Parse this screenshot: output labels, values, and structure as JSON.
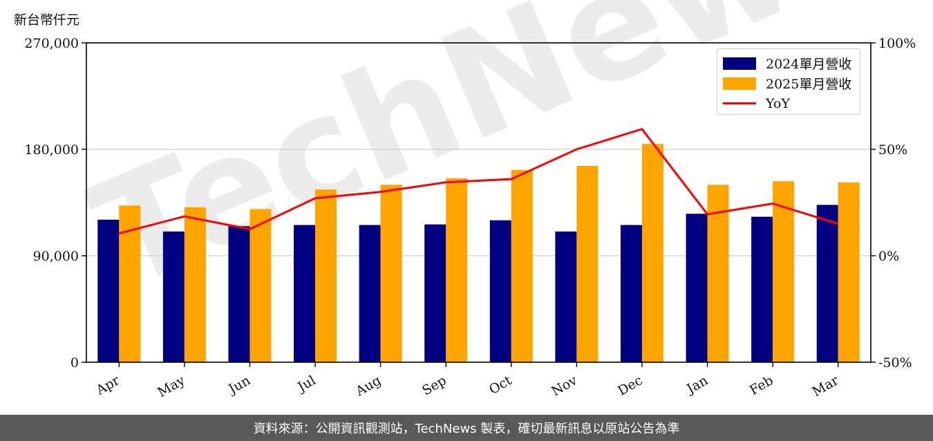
{
  "unit_label": "新台幣仟元",
  "footer": "資料來源：公開資訊觀測站，TechNews 製表，確切最新訊息以原站公告為準",
  "watermark": "TechNews",
  "chart_data": {
    "type": "bar",
    "categories": [
      "Apr",
      "May",
      "Jun",
      "Jul",
      "Aug",
      "Sep",
      "Oct",
      "Nov",
      "Dec",
      "Jan",
      "Feb",
      "Mar"
    ],
    "series": [
      {
        "name": "2024單月營收",
        "kind": "bar",
        "axis": "left",
        "color": "#000080",
        "values": [
          120500,
          110500,
          115000,
          116000,
          116000,
          116500,
          120000,
          110500,
          116000,
          125500,
          123000,
          133000
        ]
      },
      {
        "name": "2025單月營收",
        "kind": "bar",
        "axis": "left",
        "color": "#FFA500",
        "values": [
          132500,
          131000,
          129500,
          146000,
          150000,
          155500,
          162500,
          166000,
          184500,
          150000,
          153000,
          152000
        ]
      },
      {
        "name": "YoY",
        "kind": "line",
        "axis": "right",
        "color": "#FF0000",
        "values": [
          10.5,
          18.5,
          12.5,
          27.0,
          30.0,
          34.5,
          36.0,
          50.0,
          59.5,
          19.5,
          24.5,
          15.0
        ]
      }
    ],
    "ylim": [
      0,
      270000
    ],
    "yticks": [
      0,
      90000,
      180000,
      270000
    ],
    "ytick_labels": [
      "0",
      "90,000",
      "180,000",
      "270,000"
    ],
    "y2lim": [
      -50,
      100
    ],
    "y2ticks": [
      -50,
      0,
      50,
      100
    ],
    "y2tick_labels": [
      "-50%",
      "0%",
      "50%",
      "100%"
    ],
    "grid": "horizontal",
    "legend_position": "top-right"
  }
}
